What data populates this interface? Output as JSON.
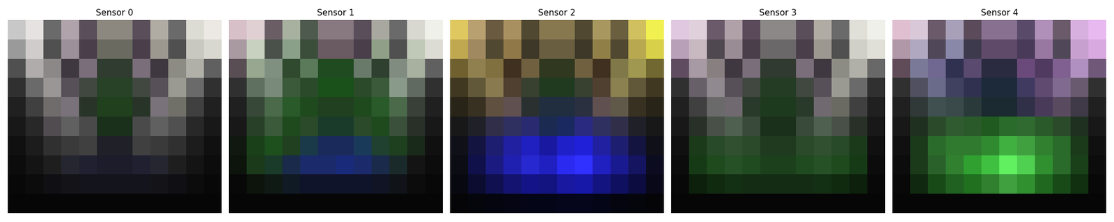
{
  "chart_data": [
    {
      "type": "image",
      "title": "Sensor 0",
      "tick_labels": false,
      "cells": [
        [
          "#c8c8c8",
          "#e6e2e2",
          "#6a6a6a",
          "#b0a4aa",
          "#5a4e5a",
          "#8c8880",
          "#8c8880",
          "#5a4e5a",
          "#b0aca4",
          "#6a6a6a",
          "#dcdcd4",
          "#ece8e4"
        ],
        [
          "#9a9a9a",
          "#d0cccc",
          "#505050",
          "#9c909a",
          "#4a3e4a",
          "#6a6a60",
          "#6a6a60",
          "#4a3e4a",
          "#9c9890",
          "#505050",
          "#c8c8c0",
          "#d8d8d0"
        ],
        [
          "#505050",
          "#b0acac",
          "#8c8888",
          "#403840",
          "#7a6e7a",
          "#303c30",
          "#303c30",
          "#7a6e7a",
          "#403840",
          "#8c8c84",
          "#b0b0a8",
          "#606060"
        ],
        [
          "#303030",
          "#6a6a6a",
          "#9a9696",
          "#585058",
          "#404840",
          "#284228",
          "#284228",
          "#404840",
          "#585058",
          "#9a9a92",
          "#6a6a6a",
          "#303030"
        ],
        [
          "#202020",
          "#404040",
          "#706c6c",
          "#7a727a",
          "#283428",
          "#20401e",
          "#20401e",
          "#283428",
          "#7a727a",
          "#707068",
          "#404040",
          "#202020"
        ],
        [
          "#181818",
          "#282828",
          "#504c50",
          "#606060",
          "#4a4a4a",
          "#1a301a",
          "#1a301a",
          "#4a4a4a",
          "#606060",
          "#505050",
          "#282828",
          "#181818"
        ],
        [
          "#101010",
          "#1c1c1c",
          "#303030",
          "#3a3a3a",
          "#404040",
          "#202028",
          "#202028",
          "#404040",
          "#3a3a3a",
          "#303030",
          "#1c1c1c",
          "#101010"
        ],
        [
          "#0c0c0c",
          "#141414",
          "#1e1e1e",
          "#262630",
          "#202030",
          "#1c1c2a",
          "#1c1c2a",
          "#202030",
          "#262630",
          "#1e1e1e",
          "#141414",
          "#0c0c0c"
        ],
        [
          "#080808",
          "#0c0c0c",
          "#101014",
          "#141418",
          "#14141c",
          "#14141c",
          "#14141c",
          "#14141c",
          "#141418",
          "#101014",
          "#0c0c0c",
          "#080808"
        ],
        [
          "#060606",
          "#060606",
          "#060606",
          "#060606",
          "#060606",
          "#060606",
          "#060606",
          "#060606",
          "#060606",
          "#060606",
          "#060606",
          "#060606"
        ]
      ]
    },
    {
      "type": "image",
      "title": "Sensor 1",
      "tick_labels": false,
      "cells": [
        [
          "#d8c0c8",
          "#e0d0d4",
          "#6a5e64",
          "#a8b0a0",
          "#4e5a4e",
          "#887880",
          "#887880",
          "#5a4e5a",
          "#a8a8a0",
          "#6a6a6a",
          "#d8d8d0",
          "#f0f0ea"
        ],
        [
          "#a89aa0",
          "#c8d0c0",
          "#4a504a",
          "#8aa088",
          "#3a4e3a",
          "#6a5a62",
          "#6a5a62",
          "#4a3e4a",
          "#90a088",
          "#505050",
          "#c0c8b8",
          "#dcdcd4"
        ],
        [
          "#584e54",
          "#98a890",
          "#809080",
          "#304a30",
          "#5a7a5a",
          "#204a20",
          "#204a20",
          "#6a7a6a",
          "#304030",
          "#808c80",
          "#a8b0a0",
          "#606060"
        ],
        [
          "#303030",
          "#607060",
          "#7a8a7a",
          "#3a5a3a",
          "#2a4a2a",
          "#1a501a",
          "#1a501a",
          "#2a4a2a",
          "#3a5a3a",
          "#8a9a8a",
          "#606a60",
          "#303030"
        ],
        [
          "#202020",
          "#384838",
          "#4a6a4a",
          "#2a5a2a",
          "#1e4a1e",
          "#204020",
          "#204020",
          "#1e4a1e",
          "#2a5a2a",
          "#4a6a4a",
          "#384038",
          "#202020"
        ],
        [
          "#181818",
          "#284028",
          "#3a5a3a",
          "#1e4a1e",
          "#2a4a2a",
          "#1a3a2a",
          "#1a3a2a",
          "#2a4a2a",
          "#1e4a1e",
          "#3a503a",
          "#283028",
          "#181818"
        ],
        [
          "#101810",
          "#1a401a",
          "#1e501e",
          "#204020",
          "#1a3a4a",
          "#1a2a5a",
          "#1a2a5a",
          "#1a3a5a",
          "#204030",
          "#1e401e",
          "#1a2a1a",
          "#101010"
        ],
        [
          "#0c140c",
          "#1a3a1a",
          "#1a3a2a",
          "#1a2a4a",
          "#1a2a6a",
          "#1a2a6a",
          "#1a2a7a",
          "#1a2a6a",
          "#1a2a4a",
          "#1a2a2a",
          "#141414",
          "#0c0c0c"
        ],
        [
          "#080808",
          "#0c140c",
          "#101a14",
          "#101a24",
          "#10142a",
          "#10142a",
          "#10142a",
          "#10142a",
          "#101424",
          "#101418",
          "#0c0c0c",
          "#080808"
        ],
        [
          "#060606",
          "#060606",
          "#060606",
          "#060606",
          "#060606",
          "#060606",
          "#060606",
          "#060606",
          "#060606",
          "#060606",
          "#060606",
          "#060606"
        ]
      ]
    },
    {
      "type": "image",
      "title": "Sensor 2",
      "tick_labels": false,
      "cells": [
        [
          "#e0c860",
          "#b8a070",
          "#6a5a40",
          "#a89060",
          "#504830",
          "#887850",
          "#887850",
          "#504830",
          "#a89860",
          "#6a6040",
          "#d0c060",
          "#f0f050"
        ],
        [
          "#c0a850",
          "#a08860",
          "#504830",
          "#907848",
          "#3e3828",
          "#6a5e40",
          "#6a5e40",
          "#3e3828",
          "#908048",
          "#504830",
          "#b8a850",
          "#d8d048"
        ],
        [
          "#706030",
          "#908050",
          "#807040",
          "#403020",
          "#706040",
          "#303820",
          "#303820",
          "#706040",
          "#403020",
          "#807848",
          "#a09850",
          "#706830"
        ],
        [
          "#403820",
          "#605838",
          "#8a7a50",
          "#504030",
          "#384030",
          "#203a20",
          "#203a20",
          "#384030",
          "#504030",
          "#8a8050",
          "#605838",
          "#403820"
        ],
        [
          "#282418",
          "#383020",
          "#605040",
          "#605050",
          "#2a3030",
          "#202e40",
          "#202e40",
          "#2a3040",
          "#605050",
          "#605848",
          "#383020",
          "#282418"
        ],
        [
          "#181818",
          "#202028",
          "#302e48",
          "#303060",
          "#2a2a70",
          "#1a2a50",
          "#1a2a60",
          "#2a2a80",
          "#303060",
          "#302e48",
          "#202028",
          "#181818"
        ],
        [
          "#101018",
          "#141440",
          "#1e1e70",
          "#2020a0",
          "#2020c0",
          "#1818a0",
          "#2020c8",
          "#2020d8",
          "#2020a0",
          "#1e1e70",
          "#141440",
          "#101018"
        ],
        [
          "#0c0c14",
          "#10104a",
          "#1a1a80",
          "#2020b0",
          "#2828d0",
          "#2020c0",
          "#2a2af0",
          "#3030ff",
          "#2020c0",
          "#1a1a90",
          "#141460",
          "#0c0c20"
        ],
        [
          "#080810",
          "#0c0c30",
          "#101050",
          "#141470",
          "#141488",
          "#141480",
          "#1818a0",
          "#1818a8",
          "#141480",
          "#101060",
          "#0c0c40",
          "#080818"
        ],
        [
          "#050508",
          "#05050c",
          "#050510",
          "#050514",
          "#050518",
          "#050518",
          "#05051c",
          "#05051c",
          "#050518",
          "#050510",
          "#05050c",
          "#050508"
        ]
      ]
    },
    {
      "type": "image",
      "title": "Sensor 3",
      "tick_labels": false,
      "cells": [
        [
          "#e0c8e0",
          "#e0d0dc",
          "#6a5a6a",
          "#b0a0a8",
          "#5a4a5a",
          "#8c8888",
          "#8c8888",
          "#5a4e5a",
          "#b0aca4",
          "#6a6a6a",
          "#e0e0d8",
          "#f0f0ea"
        ],
        [
          "#b8a0b8",
          "#c8b8c0",
          "#504850",
          "#9a8c94",
          "#4a3e4a",
          "#6a6868",
          "#6a6868",
          "#4a3e4a",
          "#9c9890",
          "#505050",
          "#d0d0c8",
          "#e0e0d8"
        ],
        [
          "#604c60",
          "#a89aa4",
          "#888080",
          "#403840",
          "#7a6e7a",
          "#303a30",
          "#303a30",
          "#7a6e7a",
          "#403840",
          "#8c8c84",
          "#b0b0a8",
          "#686868"
        ],
        [
          "#303030",
          "#686068",
          "#908a90",
          "#585058",
          "#404840",
          "#243c24",
          "#243c24",
          "#404840",
          "#585058",
          "#9a9a92",
          "#6a6a6a",
          "#303030"
        ],
        [
          "#202020",
          "#404040",
          "#6a6a6a",
          "#706a70",
          "#2a3a2a",
          "#1e3a1e",
          "#1e3a1e",
          "#2a3a2a",
          "#706a70",
          "#6a6a62",
          "#404040",
          "#202020"
        ],
        [
          "#181818",
          "#283028",
          "#485048",
          "#506050",
          "#3a4a3a",
          "#1a301a",
          "#1a301a",
          "#3a4a3a",
          "#506050",
          "#485048",
          "#283028",
          "#181818"
        ],
        [
          "#101010",
          "#1a3a1a",
          "#284a28",
          "#305030",
          "#2a4a2a",
          "#203a20",
          "#203a20",
          "#2a4a2a",
          "#305030",
          "#284a28",
          "#1a3a1a",
          "#101010"
        ],
        [
          "#0c0c0c",
          "#163a16",
          "#1e4a1e",
          "#265026",
          "#204a20",
          "#1c401c",
          "#1c401c",
          "#204a20",
          "#265026",
          "#1e4a1e",
          "#163a16",
          "#0c0c0c"
        ],
        [
          "#080808",
          "#0c200c",
          "#102a10",
          "#143014",
          "#142c14",
          "#142c14",
          "#142c14",
          "#142c14",
          "#143014",
          "#102a10",
          "#0c200c",
          "#080808"
        ],
        [
          "#060606",
          "#060606",
          "#060606",
          "#060606",
          "#060606",
          "#060606",
          "#060606",
          "#060606",
          "#060606",
          "#060606",
          "#060606",
          "#060606"
        ]
      ]
    },
    {
      "type": "image",
      "title": "Sensor 4",
      "tick_labels": false,
      "cells": [
        [
          "#e0c0d0",
          "#d8c8d8",
          "#6a5a6a",
          "#a8a0b8",
          "#5a4a5a",
          "#887090",
          "#887090",
          "#5a4a6a",
          "#b090b8",
          "#6a5a6a",
          "#d8b0e0",
          "#e8b8f0"
        ],
        [
          "#b098a8",
          "#b0a8c0",
          "#504858",
          "#8a88a8",
          "#3e3a4e",
          "#604a6a",
          "#604a6a",
          "#4a3a5a",
          "#9878a0",
          "#504858",
          "#c8a0d0",
          "#d8a8e0"
        ],
        [
          "#604c58",
          "#7a7a98",
          "#706890",
          "#303050",
          "#5a4a70",
          "#2a2a40",
          "#2a2a40",
          "#6a4a7a",
          "#503a60",
          "#806090",
          "#b090c0",
          "#705878"
        ],
        [
          "#303030",
          "#505060",
          "#6a6a8a",
          "#404060",
          "#303050",
          "#1c2a3a",
          "#1c2a3a",
          "#403a60",
          "#604a70",
          "#806a90",
          "#6a5a70",
          "#303030"
        ],
        [
          "#202020",
          "#303838",
          "#405050",
          "#3a4a4a",
          "#2a3a3a",
          "#1a2a30",
          "#1a2a30",
          "#303048",
          "#4a3a5a",
          "#5a4a60",
          "#403a48",
          "#202020"
        ],
        [
          "#181818",
          "#203020",
          "#2a4a2a",
          "#305a30",
          "#2a5a2a",
          "#205a20",
          "#2a6a2a",
          "#306a30",
          "#2a5a2a",
          "#2a4a2a",
          "#203020",
          "#181818"
        ],
        [
          "#101010",
          "#1a3a1a",
          "#2a6a2a",
          "#307a30",
          "#307a30",
          "#308a30",
          "#40b040",
          "#40a040",
          "#308030",
          "#2a6a2a",
          "#1a3a1a",
          "#101010"
        ],
        [
          "#0c0c0c",
          "#1a3a1a",
          "#2a602a",
          "#308030",
          "#30a030",
          "#40c040",
          "#60f060",
          "#50d050",
          "#309030",
          "#2a6a2a",
          "#1a401a",
          "#0c0c0c"
        ],
        [
          "#080808",
          "#102810",
          "#184a18",
          "#206020",
          "#207020",
          "#308030",
          "#40a040",
          "#309030",
          "#206820",
          "#184a18",
          "#103010",
          "#080808"
        ],
        [
          "#060606",
          "#060606",
          "#060606",
          "#060606",
          "#060606",
          "#060606",
          "#060606",
          "#060606",
          "#060606",
          "#060606",
          "#060606",
          "#060606"
        ]
      ]
    }
  ]
}
